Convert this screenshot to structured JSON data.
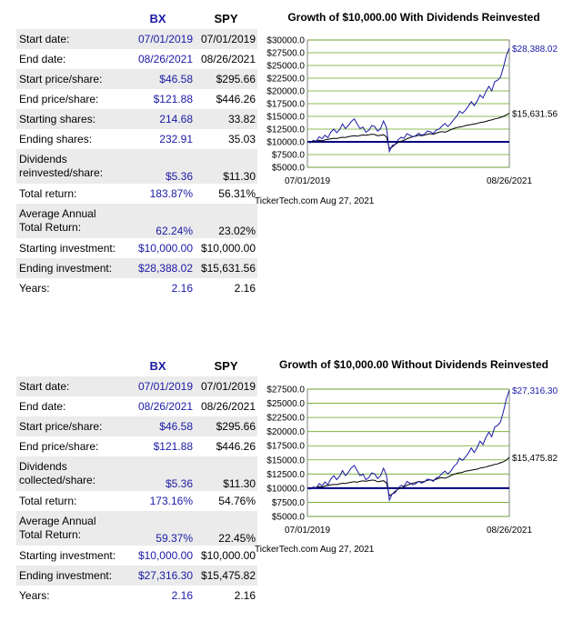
{
  "headers": {
    "bx": "BX",
    "spy": "SPY"
  },
  "panels": [
    {
      "rows": [
        {
          "label": "Start date:",
          "bx": "07/01/2019",
          "spy": "07/01/2019"
        },
        {
          "label": "End date:",
          "bx": "08/26/2021",
          "spy": "08/26/2021"
        },
        {
          "label": "Start price/share:",
          "bx": "$46.58",
          "spy": "$295.66"
        },
        {
          "label": "End price/share:",
          "bx": "$121.88",
          "spy": "$446.26"
        },
        {
          "label": "Starting shares:",
          "bx": "214.68",
          "spy": "33.82"
        },
        {
          "label": "Ending shares:",
          "bx": "232.91",
          "spy": "35.03"
        },
        {
          "label": "Dividends reinvested/share:",
          "bx": "$5.36",
          "spy": "$11.30"
        },
        {
          "label": "Total return:",
          "bx": "183.87%",
          "spy": "56.31%"
        },
        {
          "label": "Average Annual Total Return:",
          "bx": "62.24%",
          "spy": "23.02%"
        },
        {
          "label": "Starting investment:",
          "bx": "$10,000.00",
          "spy": "$10,000.00"
        },
        {
          "label": "Ending investment:",
          "bx": "$28,388.02",
          "spy": "$15,631.56"
        },
        {
          "label": "Years:",
          "bx": "2.16",
          "spy": "2.16"
        }
      ],
      "stamp": "TickerTech.com  Aug 27, 2021"
    },
    {
      "rows": [
        {
          "label": "Start date:",
          "bx": "07/01/2019",
          "spy": "07/01/2019"
        },
        {
          "label": "End date:",
          "bx": "08/26/2021",
          "spy": "08/26/2021"
        },
        {
          "label": "Start price/share:",
          "bx": "$46.58",
          "spy": "$295.66"
        },
        {
          "label": "End price/share:",
          "bx": "$121.88",
          "spy": "$446.26"
        },
        {
          "label": "Dividends collected/share:",
          "bx": "$5.36",
          "spy": "$11.30"
        },
        {
          "label": "Total return:",
          "bx": "173.16%",
          "spy": "54.76%"
        },
        {
          "label": "Average Annual Total Return:",
          "bx": "59.37%",
          "spy": "22.45%"
        },
        {
          "label": "Starting investment:",
          "bx": "$10,000.00",
          "spy": "$10,000.00"
        },
        {
          "label": "Ending investment:",
          "bx": "$27,316.30",
          "spy": "$15,475.82"
        },
        {
          "label": "Years:",
          "bx": "2.16",
          "spy": "2.16"
        }
      ],
      "stamp": "TickerTech.com  Aug 27, 2021"
    }
  ],
  "colors": {
    "bx": "#1a1aa6",
    "spy": "#000000",
    "baseline": "#000080",
    "grid": "#66a61e",
    "plot_bg": "#ffffff"
  },
  "chart_data": [
    {
      "type": "line",
      "title": "Growth of $10,000.00 With Dividends Reinvested",
      "xlabel": "",
      "ylabel": "",
      "x_ticks": [
        "07/01/2019",
        "08/26/2021"
      ],
      "y_ticks": [
        "$30000.0",
        "$27500.0",
        "$25000.0",
        "$22500.0",
        "$20000.0",
        "$17500.0",
        "$15000.0",
        "$12500.0",
        "$10000.0",
        "$7500.0",
        "$5000.0"
      ],
      "ylim": [
        5000,
        30000
      ],
      "grid": true,
      "baseline": 10000,
      "series": [
        {
          "name": "BX",
          "end_label": "$28,388.02",
          "values": [
            10000,
            9800,
            10300,
            10100,
            11000,
            10600,
            11300,
            10800,
            11900,
            12500,
            11800,
            12400,
            13500,
            12600,
            13200,
            14000,
            14500,
            13500,
            12600,
            12900,
            11900,
            12300,
            13200,
            13000,
            12100,
            12600,
            14100,
            12800,
            8100,
            9300,
            9500,
            10400,
            10900,
            10700,
            11600,
            11300,
            11000,
            11200,
            11700,
            11300,
            11500,
            12100,
            12000,
            11600,
            12300,
            12500,
            13100,
            13600,
            13000,
            13600,
            14400,
            15000,
            16000,
            15600,
            16200,
            17000,
            17900,
            17100,
            18000,
            19200,
            18600,
            19900,
            20900,
            20000,
            21800,
            22100,
            22700,
            24700,
            27000,
            28388
          ]
        },
        {
          "name": "SPY",
          "end_label": "$15,631.56",
          "values": [
            10000,
            9900,
            10050,
            10150,
            10300,
            10200,
            10400,
            10500,
            10600,
            10700,
            10650,
            10800,
            10900,
            10850,
            11000,
            11100,
            11200,
            11100,
            11250,
            11350,
            11300,
            11400,
            11500,
            11450,
            11200,
            11300,
            11400,
            11000,
            8700,
            9000,
            9500,
            9900,
            10100,
            10300,
            10600,
            10800,
            11000,
            11100,
            11300,
            11200,
            11300,
            11500,
            11600,
            11500,
            11700,
            11900,
            12000,
            11900,
            12100,
            12400,
            12600,
            12800,
            12900,
            13000,
            13200,
            13300,
            13400,
            13500,
            13600,
            13800,
            13900,
            14000,
            14200,
            14300,
            14500,
            14600,
            14800,
            15000,
            15300,
            15631
          ]
        }
      ]
    },
    {
      "type": "line",
      "title": "Growth of $10,000.00 Without Dividends Reinvested",
      "xlabel": "",
      "ylabel": "",
      "x_ticks": [
        "07/01/2019",
        "08/26/2021"
      ],
      "y_ticks": [
        "$27500.0",
        "$25000.0",
        "$22500.0",
        "$20000.0",
        "$17500.0",
        "$15000.0",
        "$12500.0",
        "$10000.0",
        "$7500.0",
        "$5000.0"
      ],
      "ylim": [
        5000,
        27500
      ],
      "grid": true,
      "baseline": 10000,
      "series": [
        {
          "name": "BX",
          "end_label": "$27,316.30",
          "values": [
            10000,
            9800,
            10200,
            10000,
            10800,
            10400,
            11100,
            10600,
            11600,
            12200,
            11500,
            12100,
            13100,
            12200,
            12800,
            13600,
            14000,
            13100,
            12200,
            12500,
            11500,
            11900,
            12700,
            12500,
            11700,
            12200,
            13500,
            12300,
            7900,
            9000,
            9200,
            10000,
            10500,
            10300,
            11200,
            10900,
            10600,
            10800,
            11200,
            10900,
            11100,
            11600,
            11500,
            11200,
            11800,
            12000,
            12600,
            13000,
            12500,
            13000,
            13800,
            14300,
            15300,
            14900,
            15500,
            16200,
            17100,
            16300,
            17200,
            18300,
            17700,
            19000,
            19900,
            19100,
            20800,
            21100,
            21700,
            23600,
            25800,
            27316
          ]
        },
        {
          "name": "SPY",
          "end_label": "$15,475.82",
          "values": [
            10000,
            9900,
            10050,
            10150,
            10280,
            10180,
            10380,
            10470,
            10570,
            10670,
            10620,
            10770,
            10860,
            10810,
            10960,
            11050,
            11150,
            11050,
            11200,
            11290,
            11240,
            11340,
            11430,
            11380,
            11130,
            11230,
            11320,
            10930,
            8650,
            8950,
            9440,
            9830,
            10030,
            10220,
            10520,
            10710,
            10900,
            11000,
            11190,
            11090,
            11180,
            11380,
            11470,
            11370,
            11570,
            11760,
            11850,
            11750,
            11940,
            12230,
            12420,
            12620,
            12710,
            12800,
            13000,
            13090,
            13180,
            13270,
            13360,
            13550,
            13640,
            13730,
            13920,
            14010,
            14200,
            14290,
            14480,
            14670,
            14960,
            15476
          ]
        }
      ]
    }
  ]
}
